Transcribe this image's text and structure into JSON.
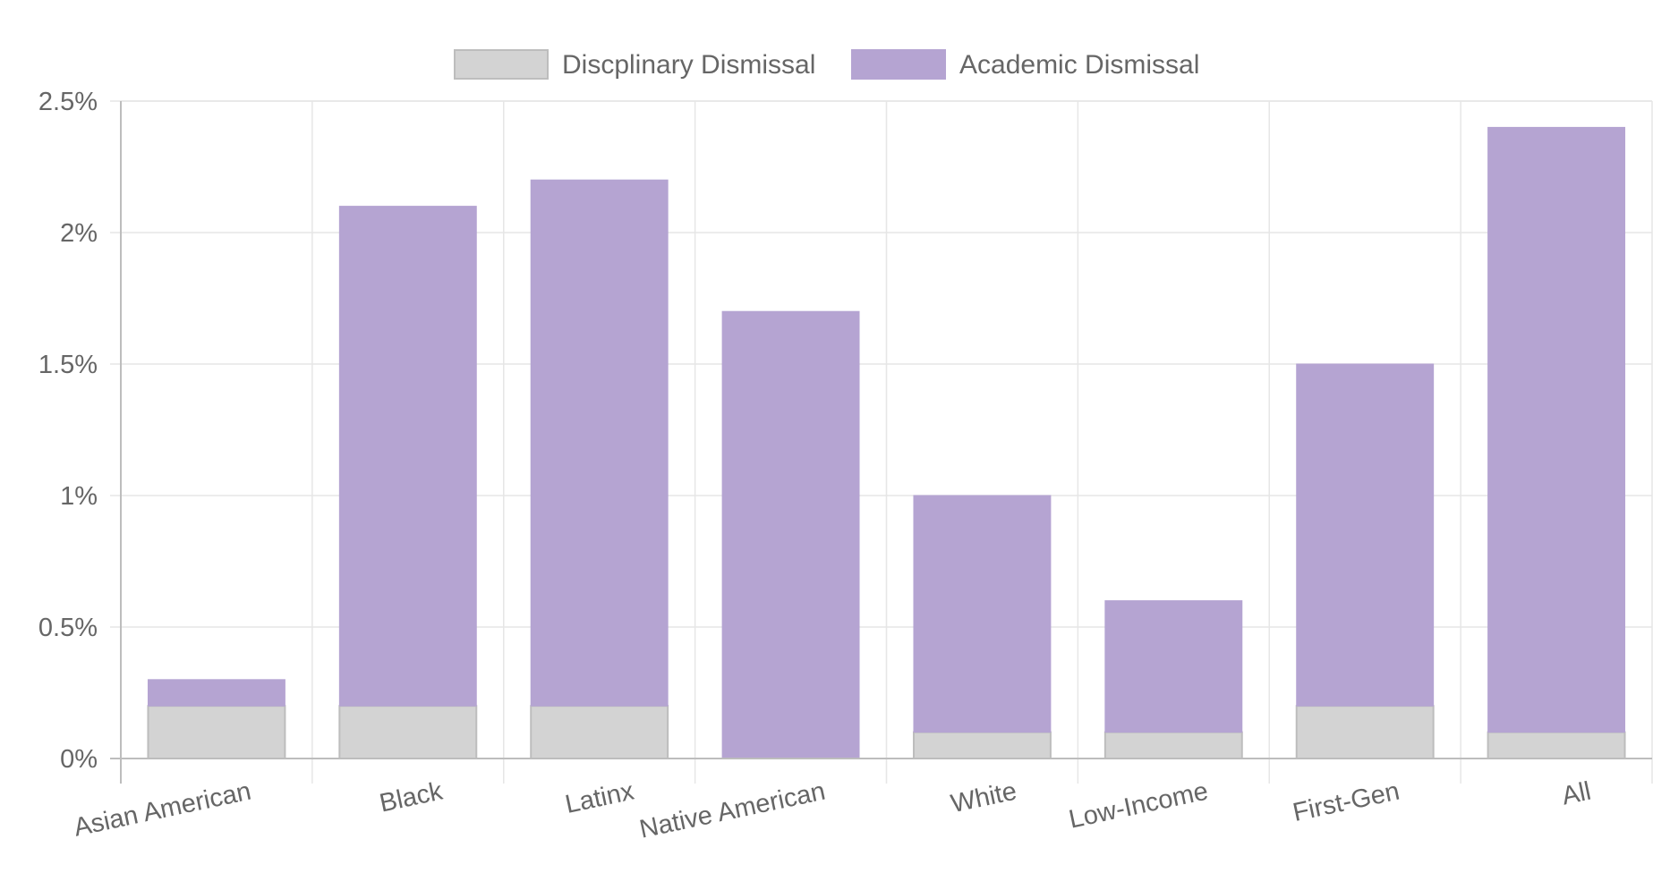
{
  "colors": {
    "disciplinary_fill": "#d3d3d3",
    "disciplinary_stroke": "#bdbdbd",
    "academic_fill": "#b5a4d2",
    "academic_stroke": "#b5a4d2"
  },
  "chart_data": {
    "type": "bar",
    "stacked": true,
    "title": "",
    "xlabel": "",
    "ylabel": "",
    "legend_position": "top",
    "grid": true,
    "categories": [
      "Asian American",
      "Black",
      "Latinx",
      "Native American",
      "White",
      "Low-Income",
      "First-Gen",
      "All"
    ],
    "series": [
      {
        "name": "Discplinary Dismissal",
        "values": [
          0.2,
          0.2,
          0.2,
          0.0,
          0.1,
          0.1,
          0.2,
          0.1
        ]
      },
      {
        "name": "Academic Dismissal",
        "values": [
          0.1,
          1.9,
          2.0,
          1.7,
          0.9,
          0.5,
          1.3,
          2.3
        ]
      }
    ],
    "ylim": [
      0,
      2.5
    ],
    "yticks": [
      0,
      0.5,
      1,
      1.5,
      2,
      2.5
    ],
    "ytick_labels": [
      "0%",
      "0.5%",
      "1%",
      "1.5%",
      "2%",
      "2.5%"
    ]
  }
}
